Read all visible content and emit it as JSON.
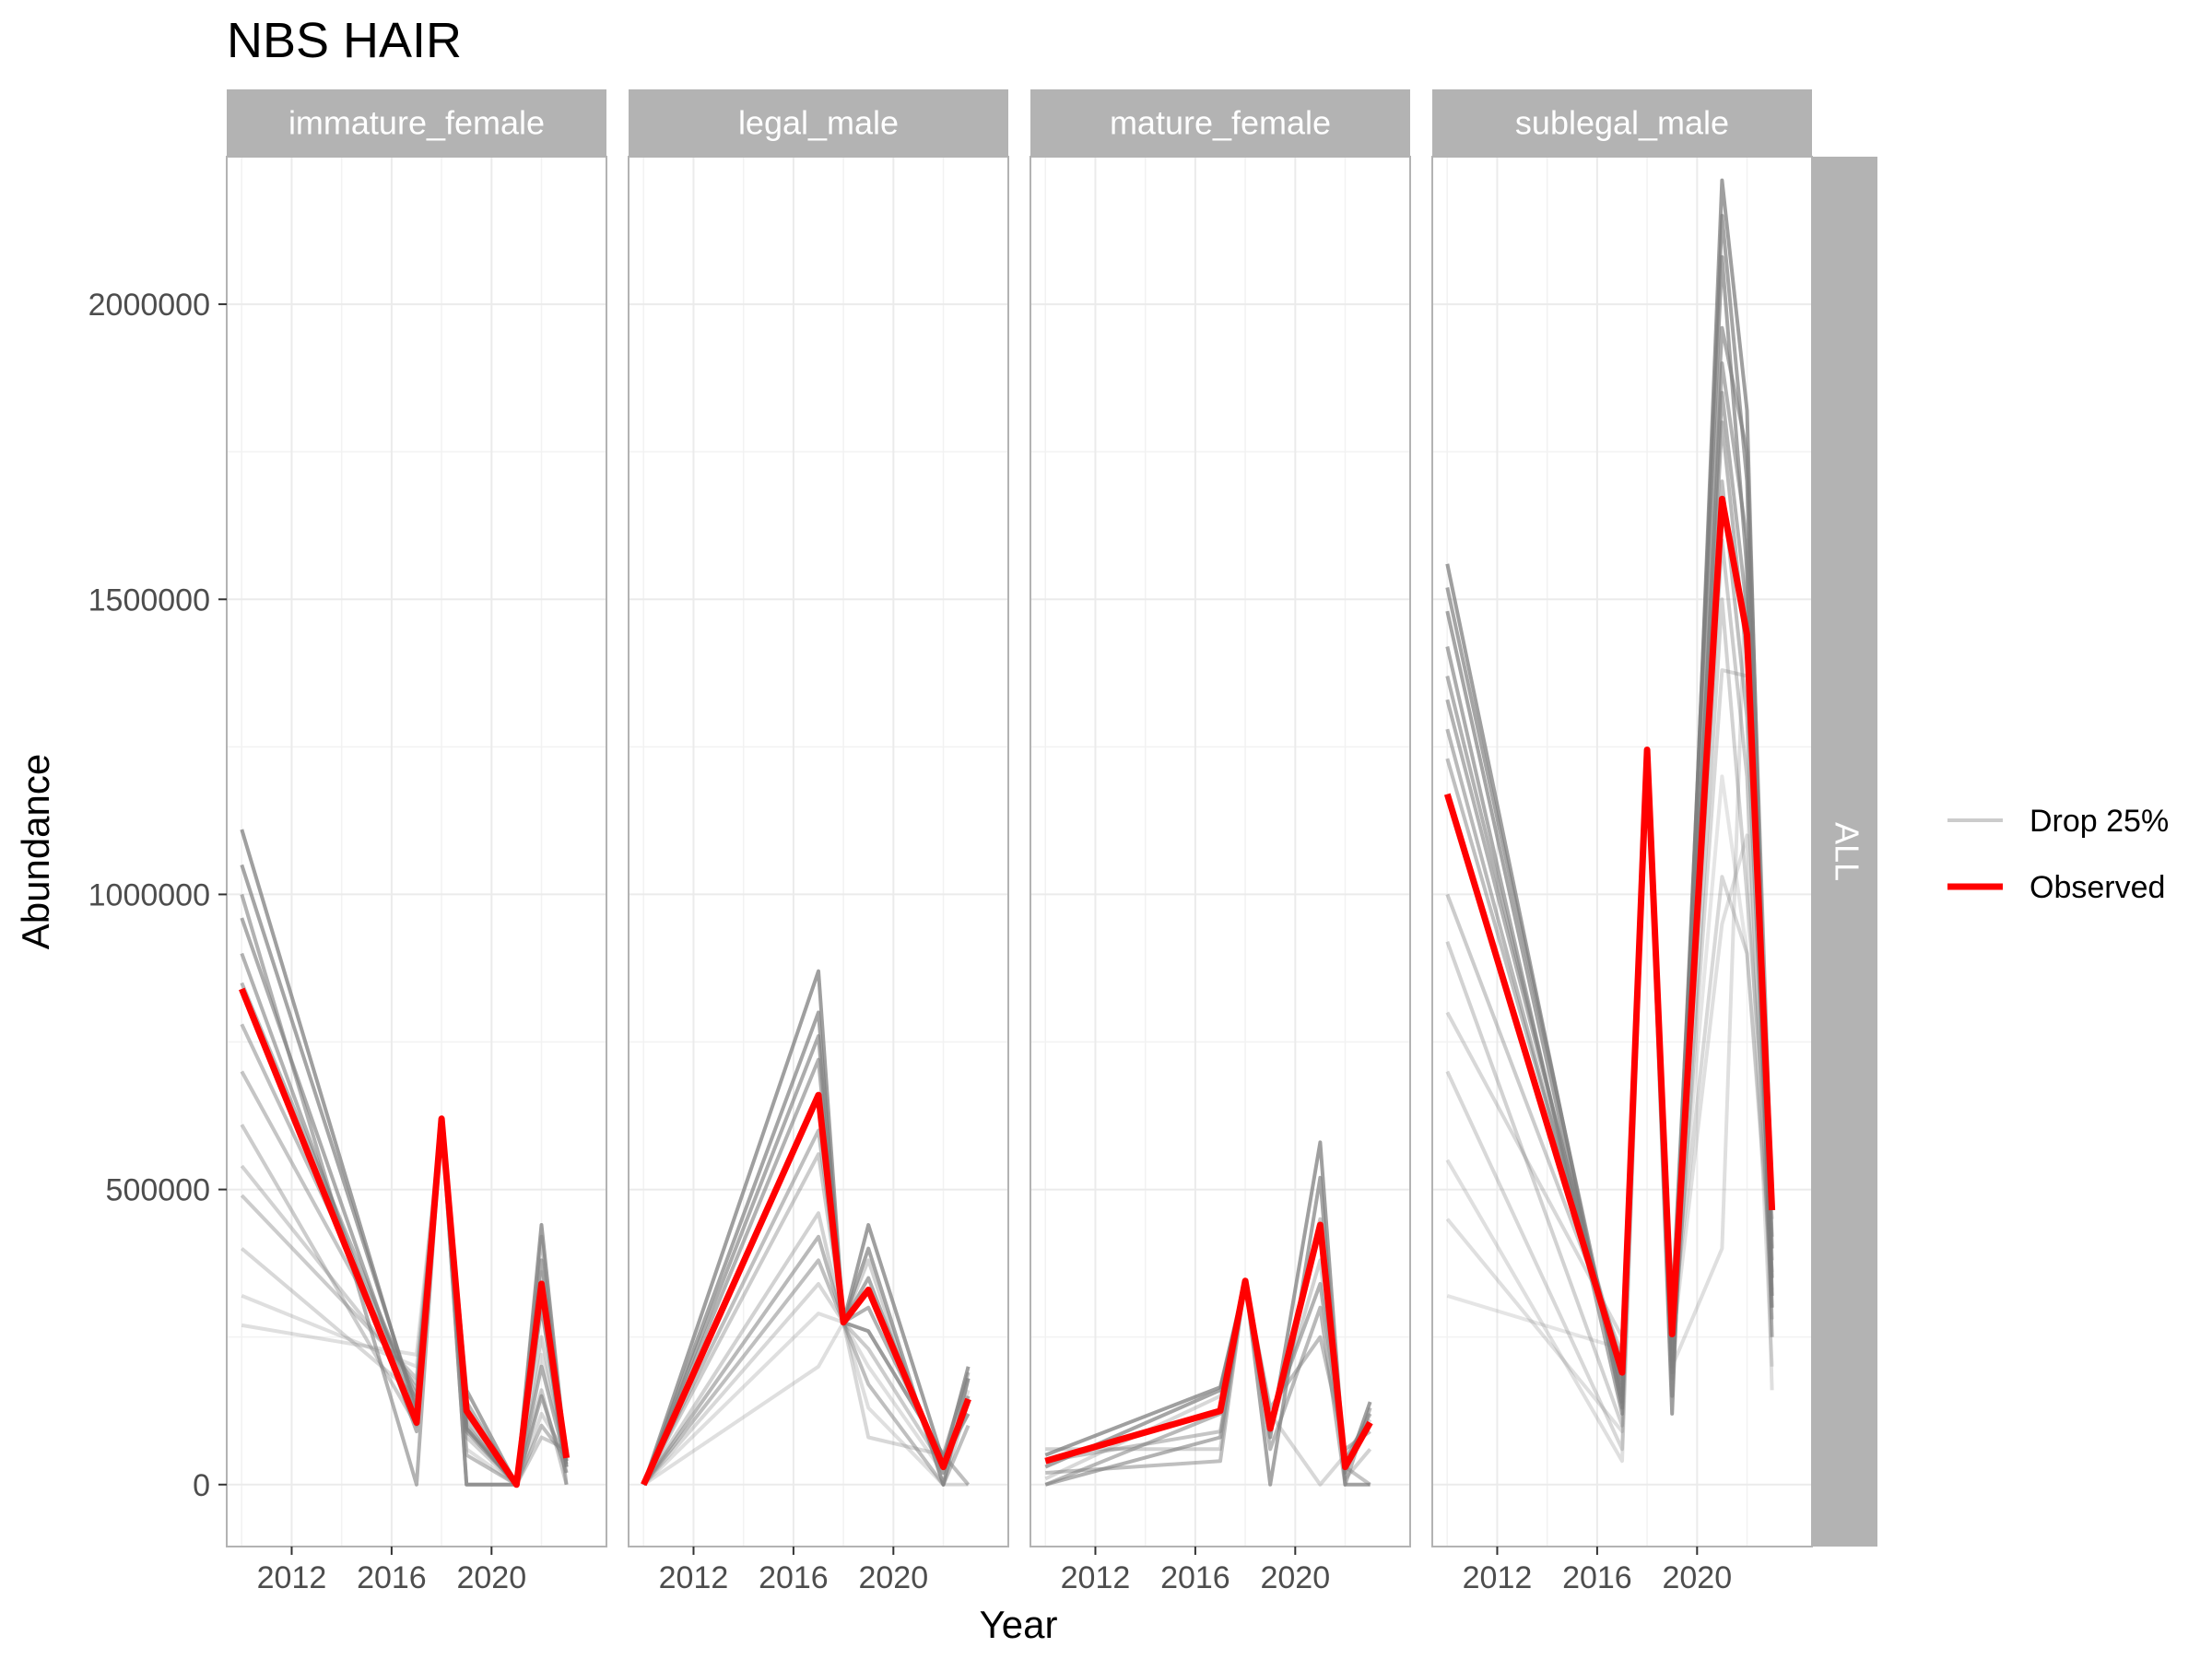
{
  "chart_data": {
    "type": "line",
    "title": "NBS HAIR",
    "xlabel": "Year",
    "ylabel": "Abundance",
    "xlim": [
      2009.4,
      2024.6
    ],
    "ylim": [
      -105000,
      2250000
    ],
    "x_ticks": [
      2012,
      2016,
      2020
    ],
    "y_ticks": [
      0,
      500000,
      1000000,
      1500000,
      2000000
    ],
    "x_tick_labels": [
      "2012",
      "2016",
      "2020"
    ],
    "y_tick_labels": [
      "0",
      "500000",
      "1000000",
      "1500000",
      "2000000"
    ],
    "row_strip": "ALL",
    "grid": true,
    "legend_position": "right",
    "legend": [
      {
        "label": "Drop 25%",
        "color": "#b3b3b3"
      },
      {
        "label": "Observed",
        "color": "#ff0000"
      }
    ],
    "colors": {
      "observed": "#ff0000",
      "drop": "#7f7f7f",
      "strip_bg": "#b3b3b3",
      "grid": "#ebebeb",
      "panel_border": "#b3b3b3"
    },
    "panels": [
      {
        "label": "immature_female",
        "x": [
          2010,
          2017,
          2018,
          2019,
          2021,
          2022,
          2023
        ],
        "observed": [
          840000,
          105000,
          620000,
          125000,
          0,
          340000,
          45000
        ],
        "drop_samples": [
          {
            "y": [
              1110000,
              120000,
              620000,
              95000,
              0,
              440000,
              40000
            ],
            "alpha": 0.75
          },
          {
            "y": [
              1050000,
              130000,
              620000,
              160000,
              0,
              300000,
              30000
            ],
            "alpha": 0.7
          },
          {
            "y": [
              1000000,
              0,
              620000,
              0,
              0,
              150000,
              20000
            ],
            "alpha": 0.6
          },
          {
            "y": [
              960000,
              110000,
              620000,
              120000,
              0,
              380000,
              50000
            ],
            "alpha": 0.65
          },
          {
            "y": [
              900000,
              90000,
              620000,
              90000,
              0,
              200000,
              35000
            ],
            "alpha": 0.6
          },
          {
            "y": [
              850000,
              140000,
              620000,
              140000,
              0,
              330000,
              0
            ],
            "alpha": 0.55
          },
          {
            "y": [
              780000,
              150000,
              620000,
              50000,
              0,
              100000,
              45000
            ],
            "alpha": 0.5
          },
          {
            "y": [
              700000,
              160000,
              620000,
              110000,
              0,
              420000,
              30000
            ],
            "alpha": 0.45
          },
          {
            "y": [
              610000,
              100000,
              620000,
              0,
              0,
              80000,
              60000
            ],
            "alpha": 0.4
          },
          {
            "y": [
              540000,
              170000,
              620000,
              80000,
              0,
              250000,
              40000
            ],
            "alpha": 0.35
          },
          {
            "y": [
              490000,
              180000,
              620000,
              100000,
              0,
              160000,
              0
            ],
            "alpha": 0.4
          },
          {
            "y": [
              400000,
              150000,
              620000,
              0,
              0,
              120000,
              50000
            ],
            "alpha": 0.3
          },
          {
            "y": [
              320000,
              200000,
              620000,
              60000,
              0,
              360000,
              20000
            ],
            "alpha": 0.25
          },
          {
            "y": [
              270000,
              220000,
              620000,
              100000,
              0,
              220000,
              45000
            ],
            "alpha": 0.25
          }
        ]
      },
      {
        "label": "legal_male",
        "x": [
          2010,
          2017,
          2018,
          2019,
          2022,
          2023
        ],
        "observed": [
          0,
          660000,
          275000,
          330000,
          30000,
          145000
        ],
        "drop_samples": [
          {
            "y": [
              0,
              870000,
              275000,
              440000,
              40000,
              200000
            ],
            "alpha": 0.75
          },
          {
            "y": [
              0,
              800000,
              275000,
              400000,
              0,
              180000
            ],
            "alpha": 0.7
          },
          {
            "y": [
              0,
              760000,
              275000,
              350000,
              20000,
              150000
            ],
            "alpha": 0.65
          },
          {
            "y": [
              0,
              720000,
              275000,
              300000,
              40000,
              120000
            ],
            "alpha": 0.6
          },
          {
            "y": [
              0,
              600000,
              275000,
              260000,
              50000,
              0
            ],
            "alpha": 0.5
          },
          {
            "y": [
              0,
              560000,
              275000,
              230000,
              30000,
              180000
            ],
            "alpha": 0.4
          },
          {
            "y": [
              0,
              460000,
              275000,
              380000,
              0,
              140000
            ],
            "alpha": 0.35
          },
          {
            "y": [
              0,
              420000,
              275000,
              260000,
              50000,
              190000
            ],
            "alpha": 0.55
          },
          {
            "y": [
              0,
              380000,
              275000,
              170000,
              0,
              100000
            ],
            "alpha": 0.5
          },
          {
            "y": [
              0,
              340000,
              275000,
              80000,
              50000,
              120000
            ],
            "alpha": 0.3
          },
          {
            "y": [
              0,
              290000,
              275000,
              130000,
              0,
              0
            ],
            "alpha": 0.25
          },
          {
            "y": [
              0,
              200000,
              275000,
              200000,
              20000,
              160000
            ],
            "alpha": 0.25
          }
        ]
      },
      {
        "label": "mature_female",
        "x": [
          2010,
          2017,
          2018,
          2019,
          2021,
          2022,
          2023
        ],
        "observed": [
          40000,
          125000,
          345000,
          95000,
          440000,
          30000,
          105000
        ],
        "drop_samples": [
          {
            "y": [
              50000,
              165000,
              345000,
              80000,
              580000,
              20000,
              140000
            ],
            "alpha": 0.75
          },
          {
            "y": [
              30000,
              160000,
              345000,
              0,
              520000,
              0,
              0
            ],
            "alpha": 0.7
          },
          {
            "y": [
              0,
              80000,
              345000,
              110000,
              340000,
              40000,
              120000
            ],
            "alpha": 0.6
          },
          {
            "y": [
              20000,
              40000,
              345000,
              130000,
              250000,
              60000,
              90000
            ],
            "alpha": 0.5
          },
          {
            "y": [
              0,
              120000,
              345000,
              60000,
              300000,
              0,
              130000
            ],
            "alpha": 0.55
          },
          {
            "y": [
              40000,
              90000,
              345000,
              100000,
              450000,
              30000,
              0
            ],
            "alpha": 0.45
          },
          {
            "y": [
              10000,
              150000,
              345000,
              120000,
              0,
              50000,
              110000
            ],
            "alpha": 0.3
          },
          {
            "y": [
              60000,
              60000,
              345000,
              90000,
              380000,
              10000,
              60000
            ],
            "alpha": 0.35
          }
        ]
      },
      {
        "label": "sublegal_male",
        "x": [
          2010,
          2017,
          2018,
          2019,
          2021,
          2022,
          2023
        ],
        "observed": [
          1170000,
          190000,
          1245000,
          255000,
          1670000,
          1440000,
          465000
        ],
        "drop_samples": [
          {
            "y": [
              1560000,
              130000,
              1245000,
              120000,
              2210000,
              1820000,
              320000
            ],
            "alpha": 0.75
          },
          {
            "y": [
              1520000,
              150000,
              1245000,
              200000,
              2150000,
              1700000,
              400000
            ],
            "alpha": 0.7
          },
          {
            "y": [
              1480000,
              140000,
              1245000,
              260000,
              2080000,
              1550000,
              350000
            ],
            "alpha": 0.7
          },
          {
            "y": [
              1420000,
              120000,
              1245000,
              300000,
              1960000,
              1750000,
              480000
            ],
            "alpha": 0.65
          },
          {
            "y": [
              1370000,
              160000,
              1245000,
              150000,
              1900000,
              1600000,
              250000
            ],
            "alpha": 0.6
          },
          {
            "y": [
              1330000,
              180000,
              1245000,
              230000,
              1850000,
              1480000,
              300000
            ],
            "alpha": 0.6
          },
          {
            "y": [
              1280000,
              170000,
              1245000,
              280000,
              1800000,
              1400000,
              420000
            ],
            "alpha": 0.55
          },
          {
            "y": [
              1230000,
              200000,
              1245000,
              190000,
              1700000,
              1300000,
              380000
            ],
            "alpha": 0.5
          },
          {
            "y": [
              1000000,
              220000,
              1245000,
              240000,
              1600000,
              1200000,
              280000
            ],
            "alpha": 0.4
          },
          {
            "y": [
              920000,
              100000,
              1245000,
              180000,
              1500000,
              1000000,
              450000
            ],
            "alpha": 0.35
          },
          {
            "y": [
              800000,
              250000,
              1245000,
              210000,
              1380000,
              1370000,
              300000
            ],
            "alpha": 0.3
          },
          {
            "y": [
              700000,
              60000,
              1245000,
              260000,
              1030000,
              900000,
              360000
            ],
            "alpha": 0.3
          },
          {
            "y": [
              550000,
              40000,
              1245000,
              230000,
              950000,
              1100000,
              200000
            ],
            "alpha": 0.25
          },
          {
            "y": [
              450000,
              90000,
              1245000,
              200000,
              400000,
              1600000,
              160000
            ],
            "alpha": 0.25
          },
          {
            "y": [
              320000,
              230000,
              1245000,
              250000,
              1200000,
              900000,
              330000
            ],
            "alpha": 0.2
          }
        ]
      }
    ]
  }
}
